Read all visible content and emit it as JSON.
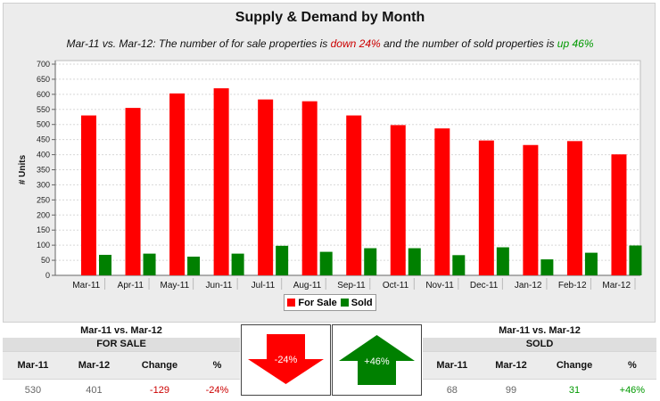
{
  "header": {
    "title": "Supply & Demand by Month",
    "subtitle_prefix": "Mar-11 vs. Mar-12: The number of for sale properties is ",
    "subtitle_down": "down 24%",
    "subtitle_mid": " and the number of sold properties is ",
    "subtitle_up": "up 46%"
  },
  "chart_data": {
    "type": "bar",
    "categories": [
      "Mar-11",
      "Apr-11",
      "May-11",
      "Jun-11",
      "Jul-11",
      "Aug-11",
      "Sep-11",
      "Oct-11",
      "Nov-11",
      "Dec-11",
      "Jan-12",
      "Feb-12",
      "Mar-12"
    ],
    "series": [
      {
        "name": "For Sale",
        "color": "#ff0000",
        "values": [
          530,
          555,
          603,
          620,
          583,
          577,
          530,
          498,
          487,
          447,
          432,
          445,
          401
        ]
      },
      {
        "name": "Sold",
        "color": "#008000",
        "values": [
          68,
          72,
          62,
          72,
          98,
          78,
          90,
          90,
          67,
          93,
          53,
          75,
          99
        ]
      }
    ],
    "ylabel": "# Units",
    "xlabel": "",
    "ylim": [
      0,
      700
    ],
    "yticks": [
      0,
      50,
      100,
      150,
      200,
      250,
      300,
      350,
      400,
      450,
      500,
      550,
      600,
      650,
      700
    ],
    "grid": true,
    "legend": "bottom-center"
  },
  "legend": {
    "for_sale": "For Sale",
    "sold": "Sold"
  },
  "for_sale_summary": {
    "period": "Mar-11 vs. Mar-12",
    "heading": "FOR SALE",
    "columns": [
      "Mar-11",
      "Mar-12",
      "Change",
      "%"
    ],
    "values": [
      "530",
      "401",
      "-129",
      "-24%"
    ]
  },
  "arrows": {
    "down_label": "-24%",
    "down_color": "#ff0000",
    "up_label": "+46%",
    "up_color": "#008000"
  },
  "sold_summary": {
    "period": "Mar-11 vs. Mar-12",
    "heading": "SOLD",
    "columns": [
      "Mar-11",
      "Mar-12",
      "Change",
      "%"
    ],
    "values": [
      "68",
      "99",
      "31",
      "+46%"
    ]
  }
}
